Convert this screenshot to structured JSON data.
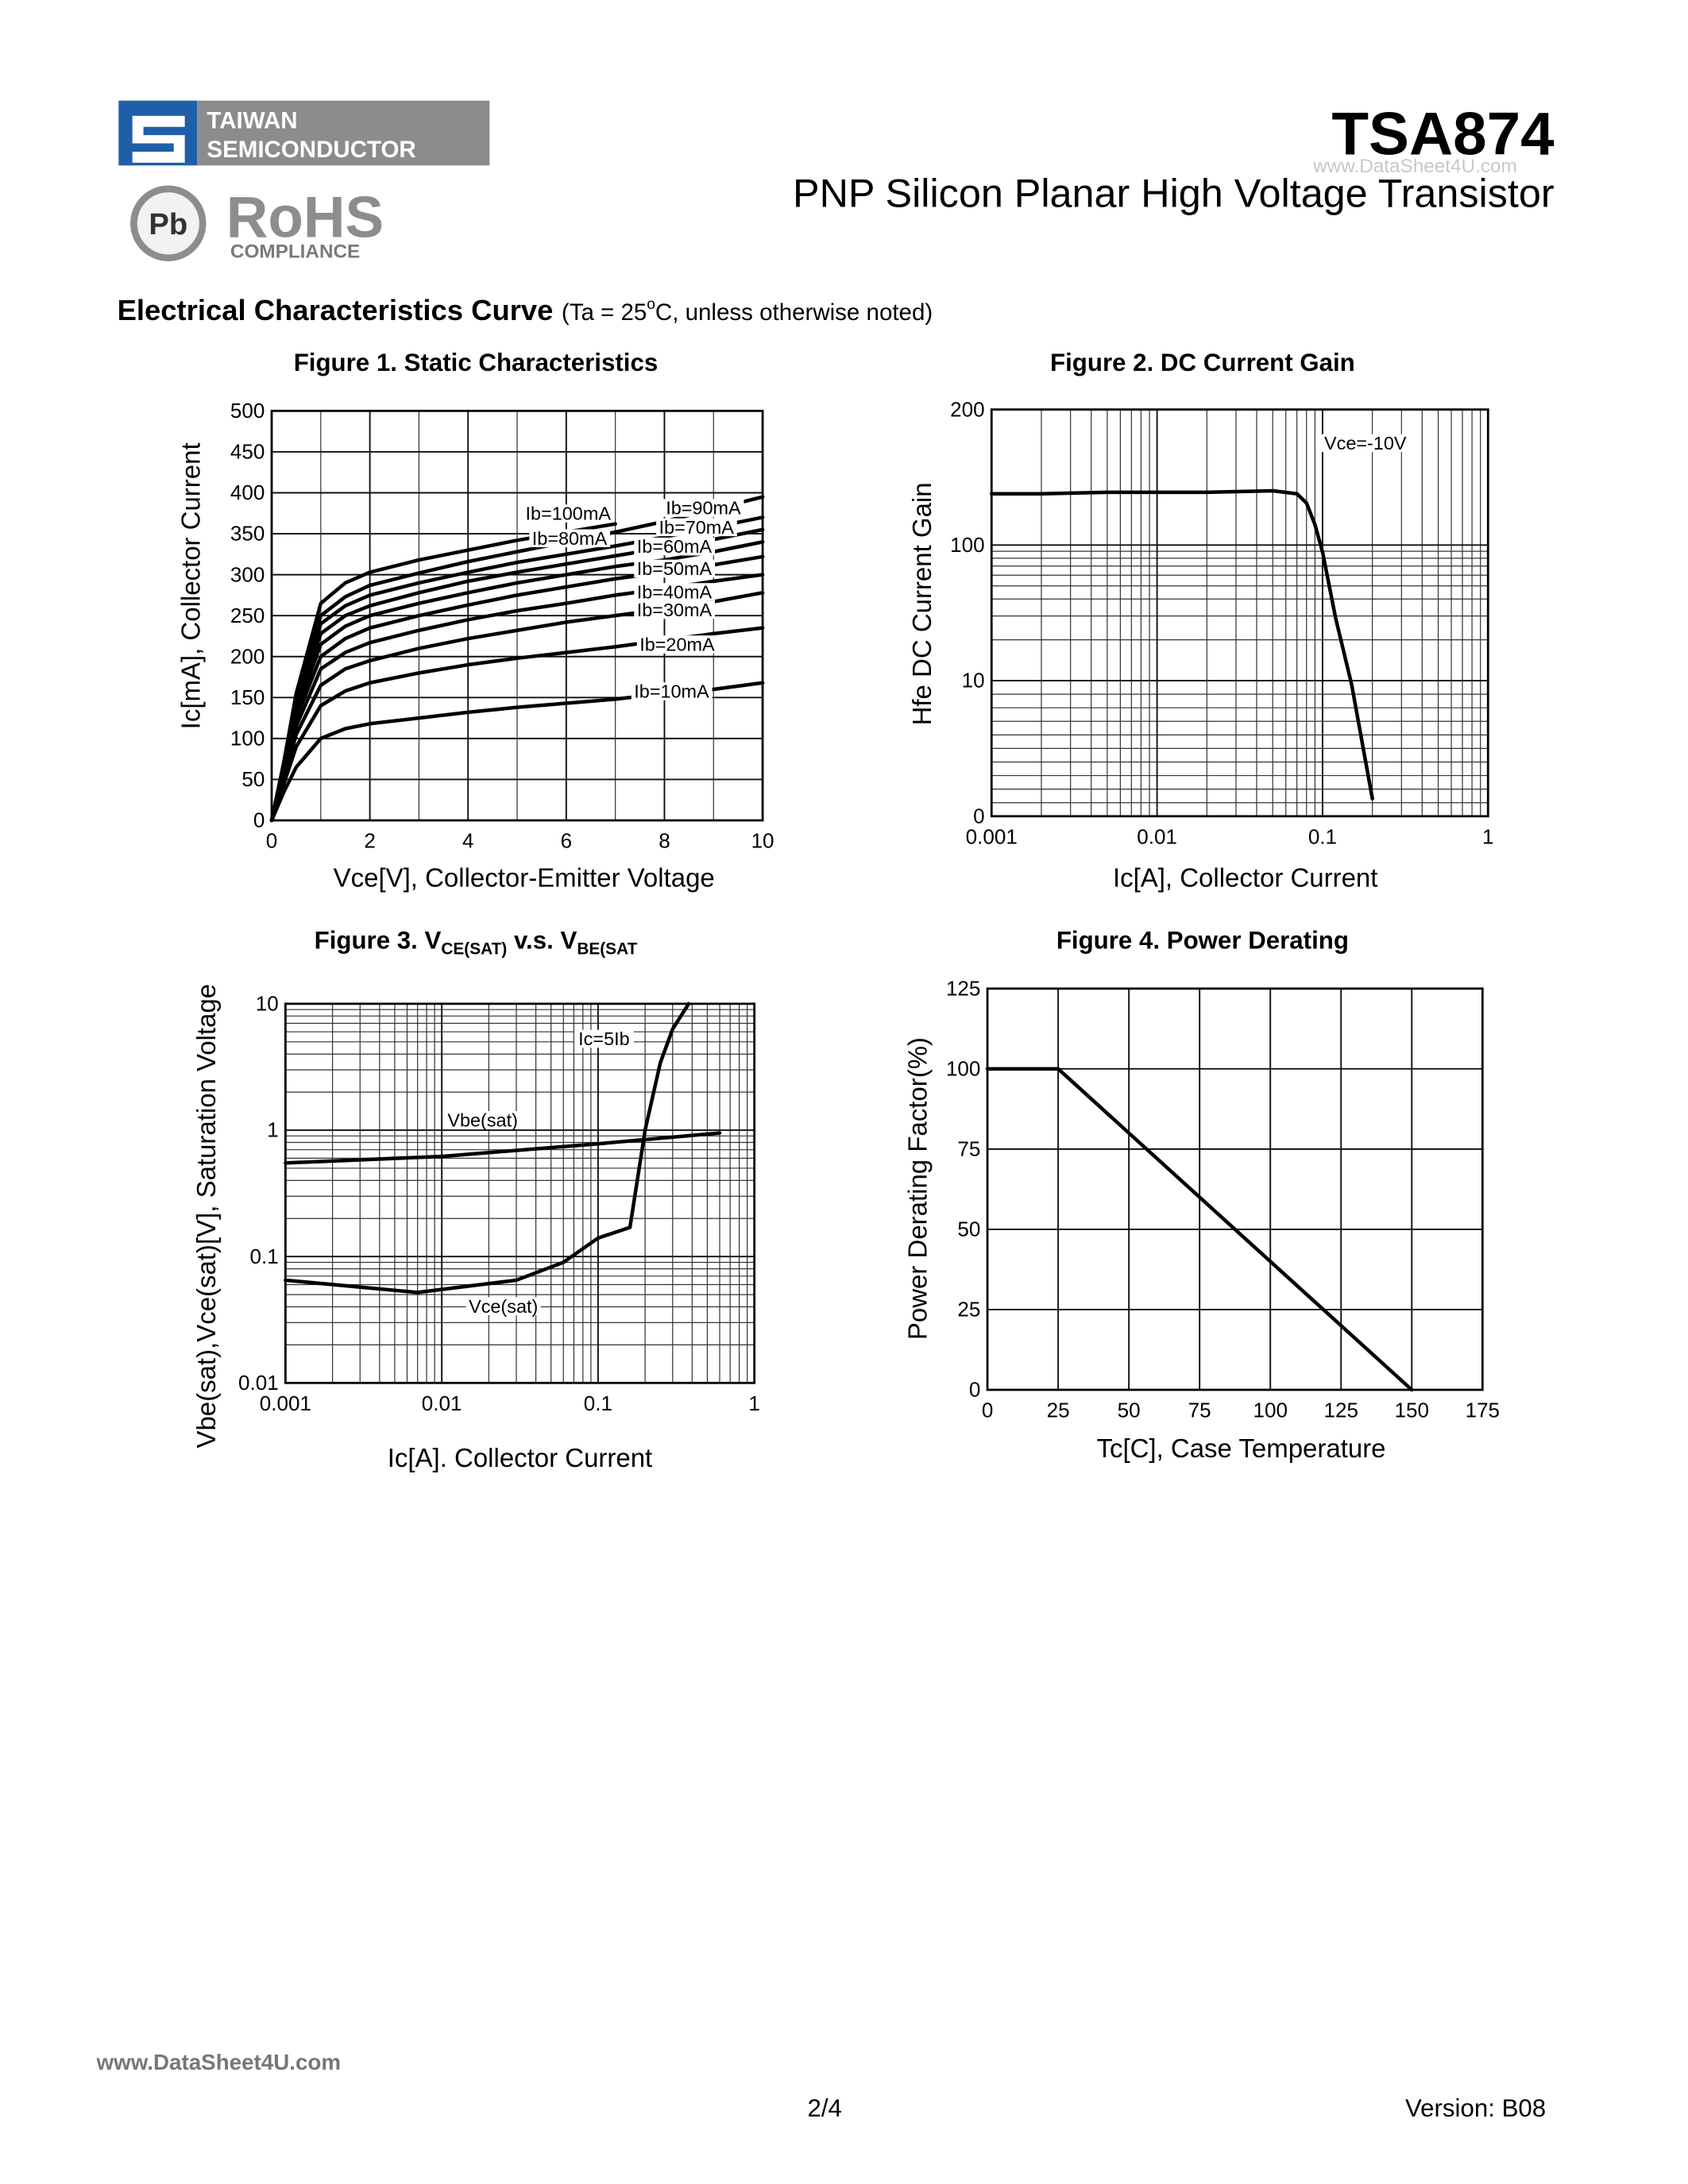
{
  "header": {
    "company": [
      "TAIWAN",
      "SEMICONDUCTOR"
    ],
    "pb": "Pb",
    "rohs": "RoHS",
    "compliance": "COMPLIANCE",
    "part": "TSA874",
    "watermark": "www.DataSheet4U.com",
    "subtitle": "PNP Silicon Planar High Voltage Transistor"
  },
  "section": {
    "title": "Electrical Characteristics Curve",
    "note": [
      "(Ta = 25",
      "o",
      "C, unless otherwise noted)"
    ]
  },
  "chart_data": [
    {
      "type": "line",
      "title": "Figure 1. Static Characteristics",
      "x_label": "Vce[V], Collector-Emitter Voltage",
      "y_label": "Ic[mA], Collector Current",
      "x": [
        0,
        0.25,
        0.5,
        1,
        1.5,
        2,
        3,
        4,
        5,
        6,
        7,
        8,
        9,
        10
      ],
      "series": [
        {
          "name": "Ib=10mA",
          "color": "#000000",
          "values": [
            0,
            35,
            65,
            100,
            112,
            118,
            125,
            132,
            138,
            143,
            148,
            155,
            160,
            168
          ]
        },
        {
          "name": "Ib=20mA",
          "color": "#000000",
          "values": [
            0,
            45,
            90,
            140,
            158,
            168,
            180,
            190,
            198,
            205,
            212,
            220,
            228,
            235
          ]
        },
        {
          "name": "Ib=30mA",
          "color": "#000000",
          "values": [
            0,
            50,
            105,
            165,
            185,
            195,
            210,
            222,
            232,
            242,
            250,
            258,
            267,
            278
          ]
        },
        {
          "name": "Ib=40mA",
          "color": "#000000",
          "values": [
            0,
            55,
            115,
            185,
            205,
            217,
            232,
            245,
            256,
            265,
            275,
            283,
            292,
            300
          ]
        },
        {
          "name": "Ib=50mA",
          "color": "#000000",
          "values": [
            0,
            60,
            125,
            200,
            222,
            235,
            250,
            263,
            275,
            285,
            295,
            303,
            312,
            322
          ]
        },
        {
          "name": "Ib=60mA",
          "color": "#000000",
          "values": [
            0,
            62,
            132,
            215,
            237,
            250,
            265,
            278,
            290,
            300,
            310,
            318,
            328,
            340
          ]
        },
        {
          "name": "Ib=70mA",
          "color": "#000000",
          "values": [
            0,
            65,
            140,
            228,
            250,
            262,
            278,
            292,
            303,
            313,
            323,
            333,
            343,
            355
          ]
        },
        {
          "name": "Ib=80mA",
          "color": "#000000",
          "values": [
            0,
            68,
            145,
            240,
            262,
            275,
            290,
            303,
            315,
            325,
            335,
            346,
            358,
            370
          ]
        },
        {
          "name": "Ib=90mA",
          "color": "#000000",
          "values": [
            0,
            70,
            150,
            250,
            273,
            287,
            302,
            316,
            328,
            340,
            352,
            365,
            380,
            395
          ]
        },
        {
          "name": "Ib=100mA",
          "color": "#000000",
          "values": [
            0,
            72,
            155,
            265,
            290,
            303,
            318,
            330,
            342,
            352,
            362,
            null,
            null,
            null
          ]
        }
      ],
      "xlim": [
        0,
        10
      ],
      "xticks": [
        0,
        2,
        4,
        6,
        8,
        10
      ],
      "ylim": [
        0,
        500
      ],
      "yticks": [
        0,
        50,
        100,
        150,
        200,
        250,
        300,
        350,
        400,
        450,
        500
      ],
      "grid": true,
      "xgrid_minor": true
    },
    {
      "type": "line",
      "title": "Figure 2. DC Current Gain",
      "x_label": "Ic[A], Collector Current",
      "y_label": "Hfe DC Current Gain",
      "annotations": [
        "Vce=-10V"
      ],
      "x": [
        0.001,
        0.002,
        0.005,
        0.01,
        0.02,
        0.05,
        0.07,
        0.08,
        0.09,
        0.1,
        0.12,
        0.15,
        0.2
      ],
      "series": [
        {
          "name": "hFE",
          "color": "#000000",
          "values": [
            130,
            130,
            131,
            131,
            131,
            132,
            130,
            124,
            111,
            89,
            28.9,
            9.7,
            1.3
          ]
        }
      ],
      "xlog": true,
      "ylog": true,
      "xlim": [
        0.001,
        1
      ],
      "xticks": [
        0.001,
        0.01,
        0.1,
        1
      ],
      "ylim": [
        0,
        200
      ],
      "yticks": [
        0,
        10,
        100,
        200
      ],
      "grid": true
    },
    {
      "type": "line",
      "title": [
        "Figure 3. V",
        "CE(SAT)",
        " v.s. V",
        "BE(SAT"
      ],
      "x_label": "Ic[A]. Collector Current",
      "y_label": "Vbe(sat),Vce(sat)[V], Saturation Voltage",
      "annotations": [
        "Ic=5Ib"
      ],
      "series": [
        {
          "name": "Vbe(sat)",
          "color": "#000000",
          "x": [
            0.001,
            0.01,
            0.1,
            0.6
          ],
          "values": [
            0.55,
            0.62,
            0.78,
            0.95
          ]
        },
        {
          "name": "Vce(sat)",
          "color": "#000000",
          "x": [
            0.001,
            0.007,
            0.03,
            0.06,
            0.1,
            0.16,
            0.2,
            0.25,
            0.3,
            0.38
          ],
          "values": [
            0.065,
            0.052,
            0.065,
            0.09,
            0.14,
            0.17,
            1.0,
            3.4,
            6.3,
            10
          ]
        }
      ],
      "xlog": true,
      "ylog": true,
      "xlim": [
        0.001,
        1
      ],
      "xticks": [
        0.001,
        0.01,
        0.1,
        1
      ],
      "ylim": [
        0.01,
        10
      ],
      "yticks": [
        0.01,
        0.1,
        1,
        10
      ],
      "grid": true
    },
    {
      "type": "line",
      "title": "Figure 4. Power Derating",
      "x_label": "Tc[C], Case Temperature",
      "y_label": "Power Derating Factor(%)",
      "x": [
        0,
        25,
        150
      ],
      "series": [
        {
          "name": "Derating",
          "color": "#000000",
          "values": [
            100,
            100,
            0
          ]
        }
      ],
      "xlim": [
        0,
        175
      ],
      "xticks": [
        0,
        25,
        50,
        75,
        100,
        125,
        150,
        175
      ],
      "ylim": [
        0,
        125
      ],
      "yticks": [
        0,
        25,
        50,
        75,
        100,
        125
      ],
      "grid": true
    }
  ],
  "footer": {
    "watermark": "www.DataSheet4U.com",
    "page": "2/4",
    "version": "Version: B08"
  }
}
